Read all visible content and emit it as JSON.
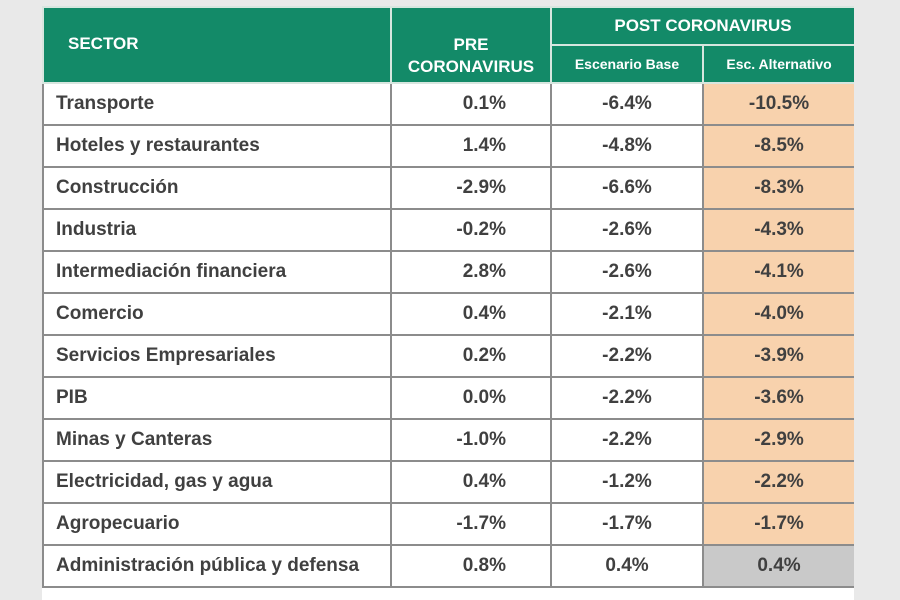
{
  "chart_data": {
    "type": "table",
    "header": {
      "sector": "SECTOR",
      "pre_line1": "PRE",
      "pre_line2": "CORONAVIRUS",
      "post": "POST CORONAVIRUS",
      "post_sub1": "Escenario Base",
      "post_sub2": "Esc. Alternativo"
    },
    "rows": [
      {
        "sector": "Transporte",
        "pre": "0.1%",
        "base": "-6.4%",
        "alt": "-10.5%"
      },
      {
        "sector": "Hoteles y restaurantes",
        "pre": "1.4%",
        "base": "-4.8%",
        "alt": "-8.5%"
      },
      {
        "sector": "Construcción",
        "pre": "-2.9%",
        "base": "-6.6%",
        "alt": "-8.3%"
      },
      {
        "sector": "Industria",
        "pre": "-0.2%",
        "base": "-2.6%",
        "alt": "-4.3%"
      },
      {
        "sector": "Intermediación financiera",
        "pre": "2.8%",
        "base": "-2.6%",
        "alt": "-4.1%"
      },
      {
        "sector": "Comercio",
        "pre": "0.4%",
        "base": "-2.1%",
        "alt": "-4.0%"
      },
      {
        "sector": "Servicios Empresariales",
        "pre": "0.2%",
        "base": "-2.2%",
        "alt": "-3.9%"
      },
      {
        "sector": "PIB",
        "pre": "0.0%",
        "base": "-2.2%",
        "alt": "-3.6%"
      },
      {
        "sector": "Minas y Canteras",
        "pre": "-1.0%",
        "base": "-2.2%",
        "alt": "-2.9%"
      },
      {
        "sector": "Electricidad, gas y agua",
        "pre": "0.4%",
        "base": "-1.2%",
        "alt": "-2.2%"
      },
      {
        "sector": "Agropecuario",
        "pre": "-1.7%",
        "base": "-1.7%",
        "alt": "-1.7%"
      },
      {
        "sector": "Administración pública y defensa",
        "pre": "0.8%",
        "base": "0.4%",
        "alt": "0.4%"
      }
    ]
  },
  "colors": {
    "header_bg": "#138a68",
    "alt_highlight": "#f8d2ad",
    "last_alt_gray": "#c9c9c9"
  }
}
